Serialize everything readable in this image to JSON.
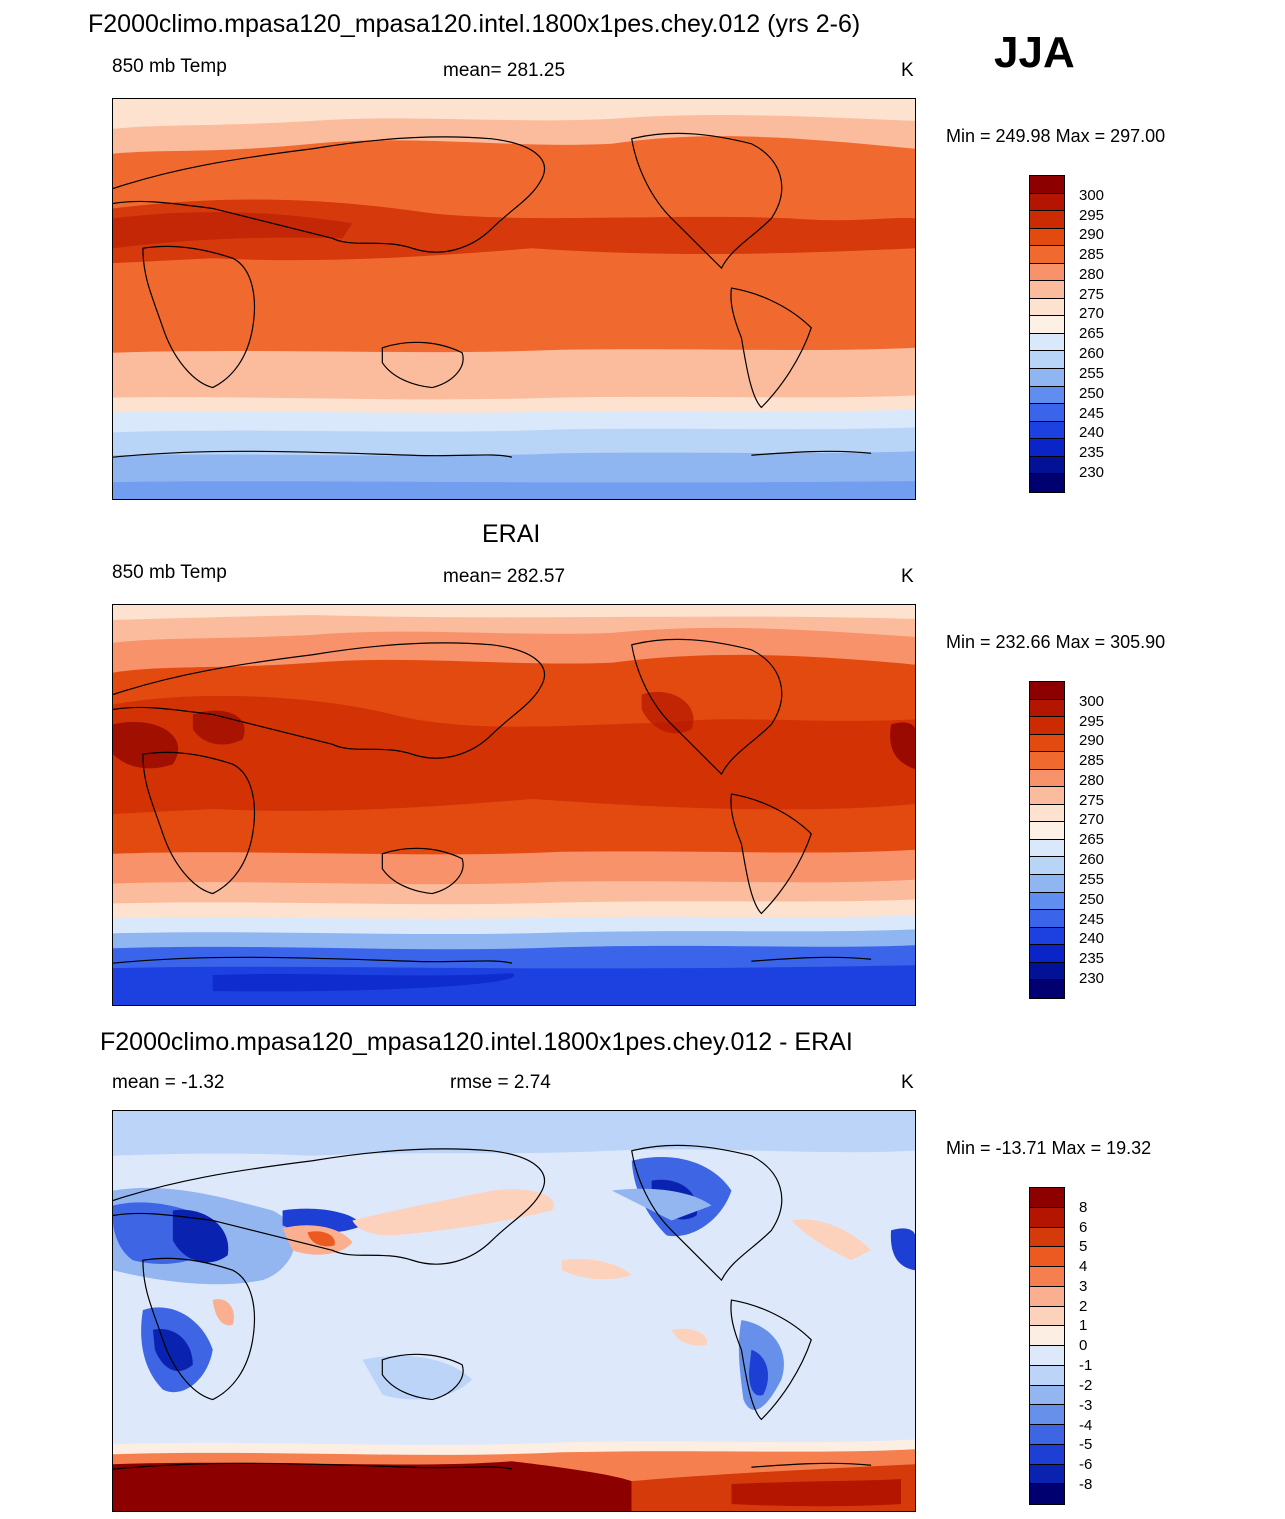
{
  "header": {
    "title": "F2000climo.mpasa120_mpasa120.intel.1800x1pes.chey.012 (yrs 2-6)",
    "season": "JJA"
  },
  "panels": [
    {
      "title": "",
      "left_label": "850 mb Temp",
      "center_label": "mean= 281.25",
      "units": "K",
      "minmax": "Min = 249.98 Max = 297.00",
      "colorbar_labels": [
        "300",
        "295",
        "290",
        "285",
        "280",
        "275",
        "270",
        "265",
        "260",
        "255",
        "250",
        "245",
        "240",
        "235",
        "230"
      ]
    },
    {
      "title": "ERAI",
      "left_label": "850 mb Temp",
      "center_label": "mean= 282.57",
      "units": "K",
      "minmax": "Min = 232.66 Max = 305.90",
      "colorbar_labels": [
        "300",
        "295",
        "290",
        "285",
        "280",
        "275",
        "270",
        "265",
        "260",
        "255",
        "250",
        "245",
        "240",
        "235",
        "230"
      ]
    },
    {
      "title": "F2000climo.mpasa120_mpasa120.intel.1800x1pes.chey.012 - ERAI",
      "left_label": "mean =  -1.32",
      "center_label": "rmse =   2.74",
      "units": "K",
      "minmax": "Min = -13.71 Max =  19.32",
      "colorbar_labels": [
        "8",
        "6",
        "5",
        "4",
        "3",
        "2",
        "1",
        "0",
        "-1",
        "-2",
        "-3",
        "-4",
        "-5",
        "-6",
        "-8"
      ]
    }
  ],
  "colors": {
    "temp_scale": [
      "#8c0000",
      "#b31500",
      "#cc2a00",
      "#e34a10",
      "#f06a30",
      "#f8926a",
      "#fbbc9d",
      "#fde2cf",
      "#fdf1e6",
      "#d9e9fb",
      "#b8d4f6",
      "#8fb6f0",
      "#5f8ef0",
      "#3a64ea",
      "#1d40e0",
      "#0a24c8",
      "#021196",
      "#000070"
    ],
    "diff_scale": [
      "#8c0000",
      "#b31500",
      "#d53a0a",
      "#ec5a22",
      "#f57f4e",
      "#fab090",
      "#fdd2bd",
      "#fdeee3",
      "#dde9fb",
      "#bcd4f7",
      "#93b6f1",
      "#6690ea",
      "#3e66e4",
      "#1e3fd4",
      "#0a22b0",
      "#000070"
    ]
  }
}
